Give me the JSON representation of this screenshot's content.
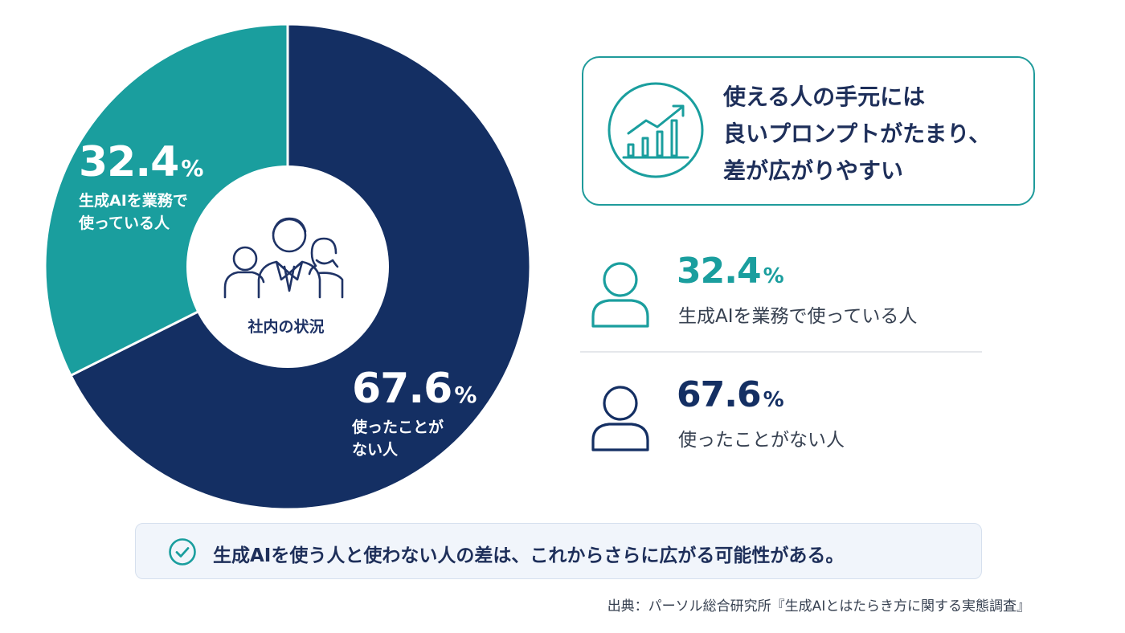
{
  "chart_data": {
    "type": "pie",
    "variant": "donut",
    "slices": [
      {
        "value_label": "32.4",
        "unit": "%",
        "label_lines": [
          "生成AIを業務で",
          "使っている人"
        ],
        "color": "#1a9e9e",
        "value": 32.4
      },
      {
        "value_label": "67.6",
        "unit": "%",
        "label_lines": [
          "使ったことが",
          "ない人"
        ],
        "color": "#142f63",
        "value": 67.6
      }
    ],
    "center_label": "社内の状況"
  },
  "callout": {
    "lines": [
      "使える人の手元には",
      "良いプロンプトがたまり、",
      "差が広がりやすい"
    ],
    "icon": "growth-chart-icon"
  },
  "stats": [
    {
      "value": "32.4",
      "unit": "%",
      "label": "生成AIを業務で使っている人",
      "color": "#1a9e9e",
      "icon": "person-icon"
    },
    {
      "value": "67.6",
      "unit": "%",
      "label": "使ったことがない人",
      "color": "#142f63",
      "icon": "person-icon"
    }
  ],
  "conclusion": {
    "icon": "check-circle-icon",
    "text": "生成AIを使う人と使わない人の差は、これからさらに広がる可能性がある。"
  },
  "source": "出典：パーソル総合研究所『生成AIとはたらき方に関する実態調査』",
  "colors": {
    "teal": "#1a9e9e",
    "navy": "#142f63",
    "accent_border": "#1f9b9b"
  }
}
